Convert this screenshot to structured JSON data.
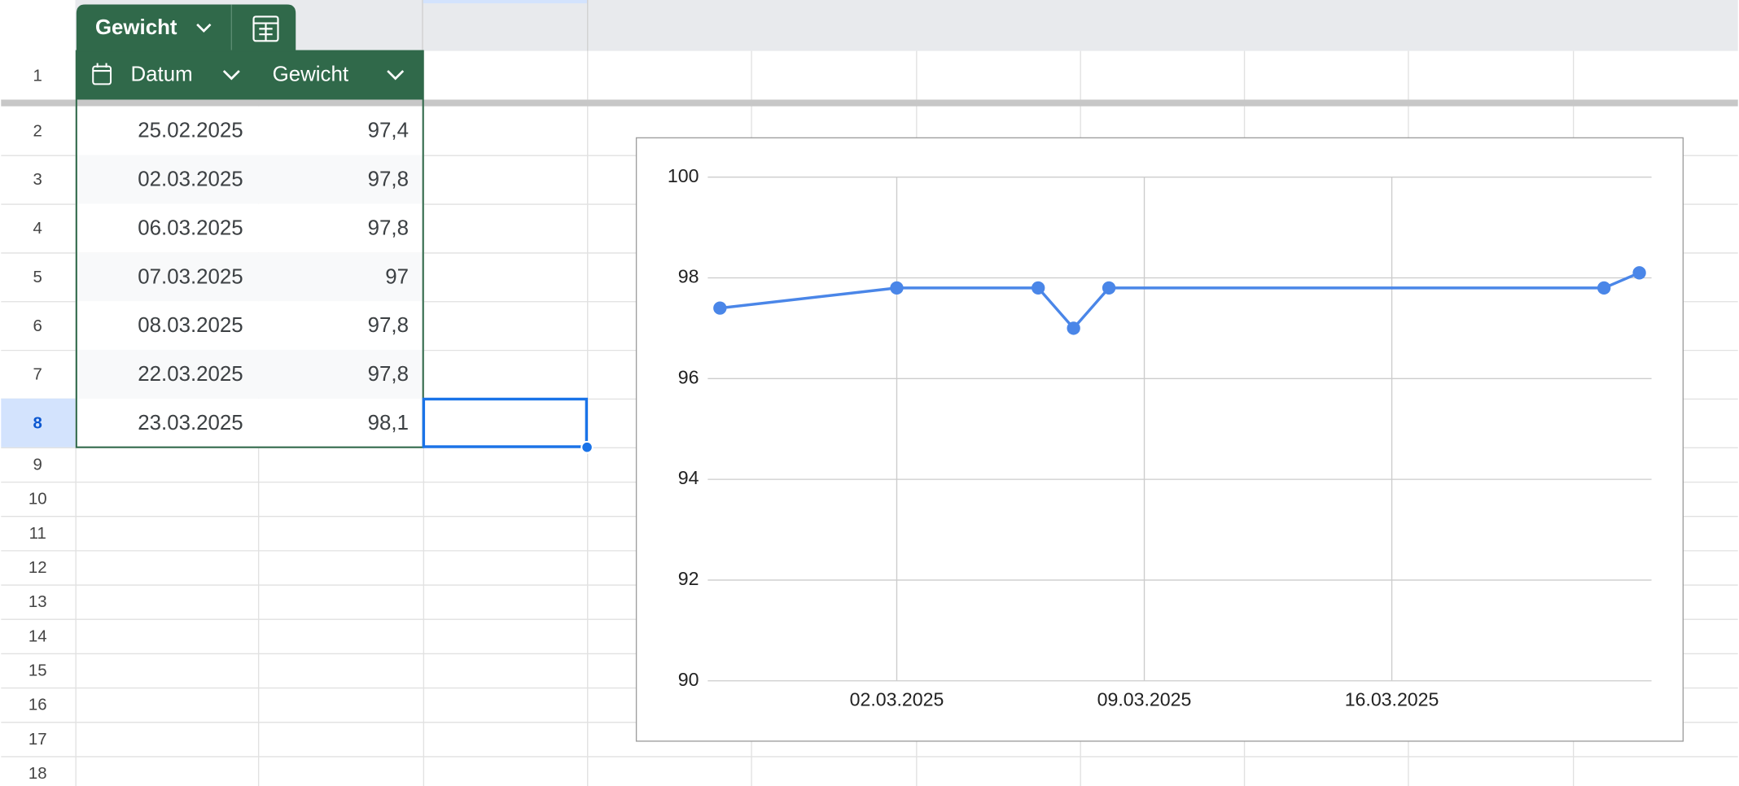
{
  "table": {
    "name": "Gewicht",
    "columns": [
      "Datum",
      "Gewicht"
    ],
    "rows": [
      [
        "25.02.2025",
        "97,4"
      ],
      [
        "02.03.2025",
        "97,8"
      ],
      [
        "06.03.2025",
        "97,8"
      ],
      [
        "07.03.2025",
        "97"
      ],
      [
        "08.03.2025",
        "97,8"
      ],
      [
        "22.03.2025",
        "97,8"
      ],
      [
        "23.03.2025",
        "98,1"
      ]
    ]
  },
  "row_numbers": [
    1,
    2,
    3,
    4,
    5,
    6,
    7,
    8,
    9,
    10,
    11,
    12,
    13,
    14,
    15,
    16,
    17,
    18
  ],
  "chart_data": {
    "type": "line",
    "x": [
      "25.02.2025",
      "02.03.2025",
      "06.03.2025",
      "07.03.2025",
      "08.03.2025",
      "22.03.2025",
      "23.03.2025"
    ],
    "values": [
      97.4,
      97.8,
      97.8,
      97,
      97.8,
      97.8,
      98.1
    ],
    "color": "#4a86e8",
    "xlim": [
      "25.02.2025",
      "23.03.2025"
    ],
    "xticks": [
      "02.03.2025",
      "09.03.2025",
      "16.03.2025"
    ],
    "ylim": [
      90,
      100
    ],
    "yticks": [
      90,
      92,
      94,
      96,
      98,
      100
    ],
    "grid": true
  }
}
